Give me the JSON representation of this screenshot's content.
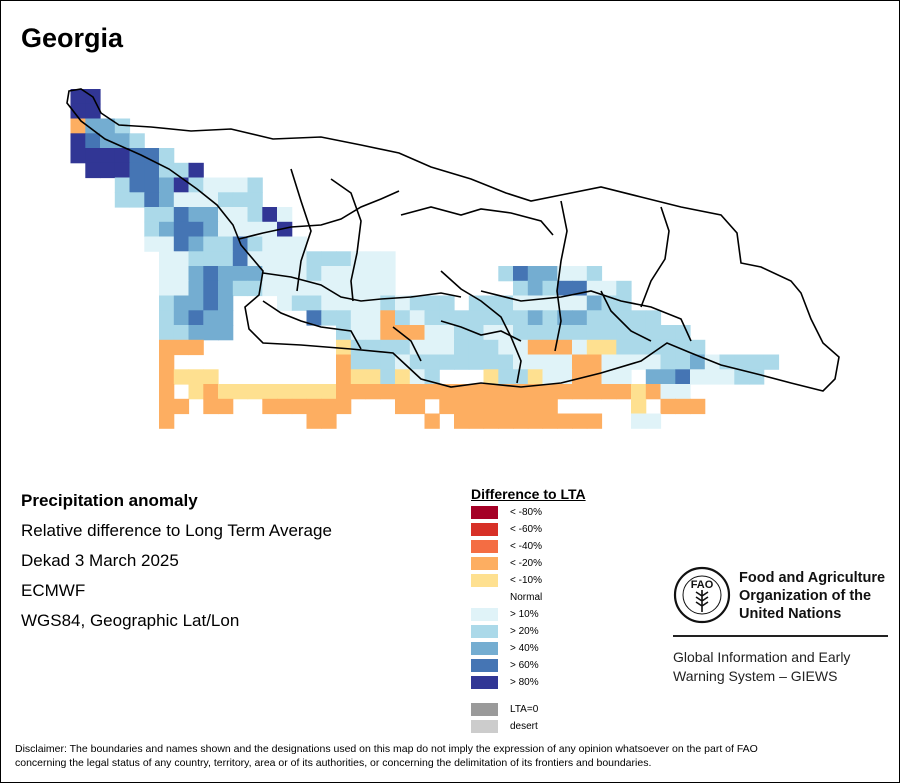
{
  "map": {
    "title": "Georgia",
    "subject": "Precipitation anomaly",
    "description": "Relative difference to Long Term Average",
    "period": "Dekad 3 March 2025",
    "model": "ECMWF",
    "projection": "WGS84, Geographic Lat/Lon"
  },
  "legend": {
    "title": "Difference to LTA",
    "classes": [
      {
        "label": "< -80%",
        "color": "#a50026"
      },
      {
        "label": "< -60%",
        "color": "#d73027"
      },
      {
        "label": "< -40%",
        "color": "#f46d43"
      },
      {
        "label": "< -20%",
        "color": "#fdae61"
      },
      {
        "label": "< -10%",
        "color": "#fee090"
      },
      {
        "label": "Normal",
        "color": "#ffffff"
      },
      {
        "label": "> 10%",
        "color": "#e0f3f8"
      },
      {
        "label": "> 20%",
        "color": "#abd9e9"
      },
      {
        "label": "> 40%",
        "color": "#74add1"
      },
      {
        "label": "> 60%",
        "color": "#4575b4"
      },
      {
        "label": "> 80%",
        "color": "#313695"
      },
      {
        "label": "LTA=0",
        "color": "#9a9a9a"
      },
      {
        "label": "desert",
        "color": "#cccccc"
      }
    ]
  },
  "organization": {
    "name_line1": "Food and Agriculture",
    "name_line2": "Organization of the",
    "name_line3": "United Nations",
    "system_line1": "Global Information and Early",
    "system_line2": "Warning System – GIEWS",
    "logo_motto": "FIAT PANIS",
    "logo_letters": "FAO"
  },
  "disclaimer_line1": "Disclaimer: The boundaries and names shown and the designations used on this map do not imply the expression of any opinion whatsoever on the part of FAO",
  "disclaimer_line2": "concerning the legal status of any country, territory, area or of its authorities, or concerning the delimitation of its frontiers and boundaries.",
  "grid": {
    "rows": [
      "..11........................................................",
      "..00........................................................",
      "..4887......................................................",
      "..09887.....................................................",
      "..0000997...................................................",
      "...00099770.................................................",
      ".....7998076667.............................................",
      ".....7798666777.............................................",
      ".......7798866706...........................................",
      ".......7899866660...........................................",
      ".......66987797666......................................",
      "........6677796666777666....................................",
      "........6689888666766666.......7988667......................",
      "........6689877666666666........78799667....................",
      "........78898...677666676777.77766666877....................",
      "........78988.....977663767777777878877777.................",
      "........77888.......766333667766777777777777..............",
      "........333.........5777766677766333655777777...............",
      "........3...........377767777777666633666677867777..........",
      "........4555........3557567...5775663366.88966677...........",
      "........3.5355555555433433344333333444335466...............",
      "........34.33..333333...33.33333333.....5.333...............",
      "........3.........33......3.4333333333..66...........",
      "............................................................"
    ]
  }
}
